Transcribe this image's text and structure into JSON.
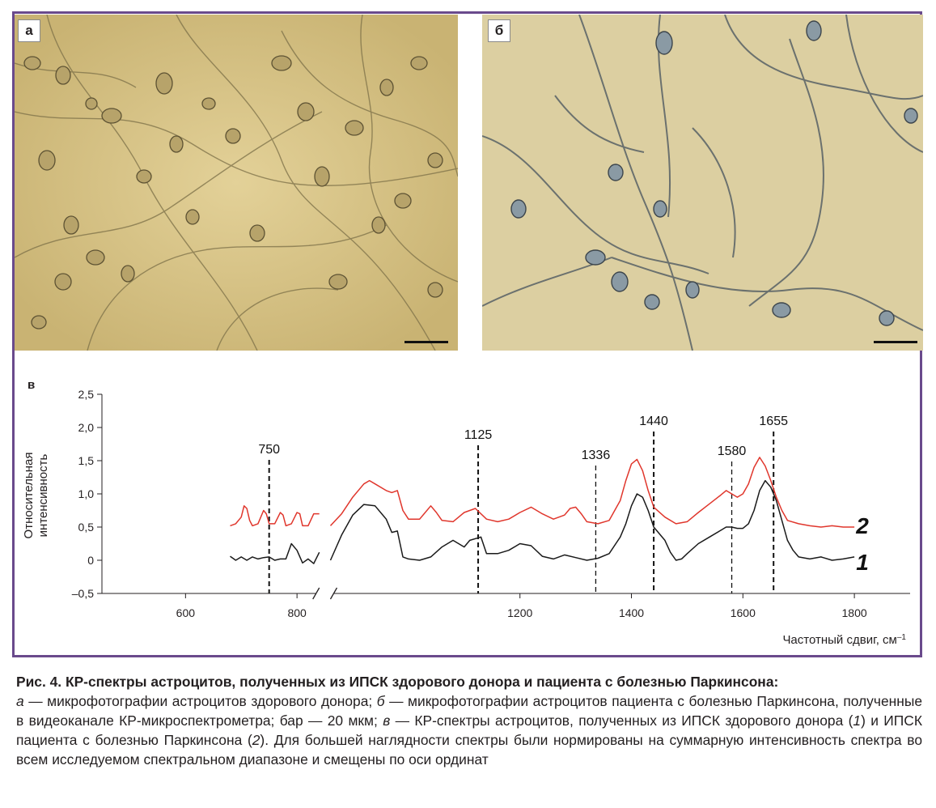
{
  "figure": {
    "panel_labels": {
      "a": "а",
      "b": "б",
      "v": "в"
    }
  },
  "chart_data": {
    "type": "line",
    "xlabel": "Частотный сдвиг, см",
    "xlabel_sup": "–1",
    "ylabel_line1": "Относительная",
    "ylabel_line2": "интенсивность",
    "xlim": [
      450,
      1900
    ],
    "ylim": [
      -0.5,
      2.5
    ],
    "yticks": [
      "–0,5",
      "0",
      "0,5",
      "1,0",
      "1,5",
      "2,0",
      "2,5"
    ],
    "yticks_values": [
      -0.5,
      0,
      0.5,
      1.0,
      1.5,
      2.0,
      2.5
    ],
    "xticks": [
      "600",
      "800",
      "1200",
      "1400",
      "1600",
      "1800"
    ],
    "xticks_values": [
      600,
      800,
      1200,
      1400,
      1600,
      1800
    ],
    "axis_break_between": [
      840,
      860
    ],
    "marker_lines": [
      {
        "x": 750,
        "label": "750"
      },
      {
        "x": 1125,
        "label": "1125"
      },
      {
        "x": 1336,
        "label": "1336"
      },
      {
        "x": 1440,
        "label": "1440"
      },
      {
        "x": 1580,
        "label": "1580"
      },
      {
        "x": 1655,
        "label": "1655"
      }
    ],
    "series": [
      {
        "name": "1",
        "color": "#1a1a1a",
        "segments": [
          [
            [
              680,
              0.06
            ],
            [
              690,
              0.0
            ],
            [
              700,
              0.05
            ],
            [
              710,
              0.0
            ],
            [
              720,
              0.05
            ],
            [
              730,
              0.02
            ],
            [
              740,
              0.04
            ],
            [
              750,
              0.05
            ],
            [
              760,
              0.0
            ],
            [
              770,
              0.02
            ],
            [
              780,
              0.02
            ],
            [
              790,
              0.25
            ],
            [
              800,
              0.15
            ],
            [
              810,
              -0.04
            ],
            [
              820,
              0.02
            ],
            [
              830,
              -0.05
            ],
            [
              840,
              0.12
            ]
          ],
          [
            [
              860,
              0.0
            ],
            [
              880,
              0.38
            ],
            [
              900,
              0.68
            ],
            [
              920,
              0.84
            ],
            [
              940,
              0.82
            ],
            [
              960,
              0.62
            ],
            [
              970,
              0.42
            ],
            [
              980,
              0.44
            ],
            [
              990,
              0.05
            ],
            [
              1000,
              0.02
            ],
            [
              1020,
              0.0
            ],
            [
              1040,
              0.05
            ],
            [
              1060,
              0.2
            ],
            [
              1080,
              0.3
            ],
            [
              1100,
              0.2
            ],
            [
              1110,
              0.3
            ],
            [
              1130,
              0.35
            ],
            [
              1140,
              0.1
            ],
            [
              1160,
              0.1
            ],
            [
              1180,
              0.15
            ],
            [
              1200,
              0.25
            ],
            [
              1220,
              0.22
            ],
            [
              1240,
              0.06
            ],
            [
              1260,
              0.02
            ],
            [
              1280,
              0.08
            ],
            [
              1300,
              0.04
            ],
            [
              1320,
              0.0
            ],
            [
              1340,
              0.03
            ],
            [
              1360,
              0.1
            ],
            [
              1380,
              0.35
            ],
            [
              1390,
              0.55
            ],
            [
              1400,
              0.82
            ],
            [
              1410,
              1.0
            ],
            [
              1420,
              0.95
            ],
            [
              1430,
              0.75
            ],
            [
              1440,
              0.5
            ],
            [
              1460,
              0.3
            ],
            [
              1470,
              0.12
            ],
            [
              1480,
              0.0
            ],
            [
              1490,
              0.02
            ],
            [
              1500,
              0.1
            ],
            [
              1520,
              0.25
            ],
            [
              1540,
              0.35
            ],
            [
              1560,
              0.45
            ],
            [
              1570,
              0.5
            ],
            [
              1580,
              0.5
            ],
            [
              1590,
              0.48
            ],
            [
              1600,
              0.48
            ],
            [
              1610,
              0.55
            ],
            [
              1620,
              0.75
            ],
            [
              1630,
              1.05
            ],
            [
              1640,
              1.2
            ],
            [
              1650,
              1.1
            ],
            [
              1660,
              0.9
            ],
            [
              1670,
              0.6
            ],
            [
              1680,
              0.3
            ],
            [
              1690,
              0.15
            ],
            [
              1700,
              0.05
            ],
            [
              1720,
              0.02
            ],
            [
              1740,
              0.05
            ],
            [
              1760,
              0.0
            ],
            [
              1780,
              0.02
            ],
            [
              1800,
              0.05
            ]
          ]
        ]
      },
      {
        "name": "2",
        "color": "#e0362c",
        "segments": [
          [
            [
              680,
              0.52
            ],
            [
              690,
              0.55
            ],
            [
              700,
              0.65
            ],
            [
              705,
              0.82
            ],
            [
              710,
              0.78
            ],
            [
              715,
              0.6
            ],
            [
              720,
              0.52
            ],
            [
              730,
              0.55
            ],
            [
              740,
              0.75
            ],
            [
              745,
              0.7
            ],
            [
              750,
              0.55
            ],
            [
              760,
              0.55
            ],
            [
              770,
              0.72
            ],
            [
              775,
              0.68
            ],
            [
              780,
              0.52
            ],
            [
              790,
              0.55
            ],
            [
              800,
              0.72
            ],
            [
              805,
              0.7
            ],
            [
              810,
              0.52
            ],
            [
              820,
              0.52
            ],
            [
              830,
              0.7
            ],
            [
              840,
              0.7
            ]
          ],
          [
            [
              860,
              0.52
            ],
            [
              880,
              0.7
            ],
            [
              900,
              0.95
            ],
            [
              920,
              1.15
            ],
            [
              930,
              1.2
            ],
            [
              940,
              1.15
            ],
            [
              960,
              1.05
            ],
            [
              970,
              1.02
            ],
            [
              980,
              1.05
            ],
            [
              990,
              0.75
            ],
            [
              1000,
              0.62
            ],
            [
              1020,
              0.62
            ],
            [
              1040,
              0.82
            ],
            [
              1050,
              0.72
            ],
            [
              1060,
              0.6
            ],
            [
              1080,
              0.58
            ],
            [
              1100,
              0.72
            ],
            [
              1120,
              0.78
            ],
            [
              1140,
              0.62
            ],
            [
              1160,
              0.58
            ],
            [
              1180,
              0.62
            ],
            [
              1200,
              0.72
            ],
            [
              1220,
              0.8
            ],
            [
              1240,
              0.7
            ],
            [
              1260,
              0.62
            ],
            [
              1280,
              0.68
            ],
            [
              1290,
              0.78
            ],
            [
              1300,
              0.8
            ],
            [
              1310,
              0.7
            ],
            [
              1320,
              0.58
            ],
            [
              1340,
              0.55
            ],
            [
              1360,
              0.6
            ],
            [
              1380,
              0.9
            ],
            [
              1390,
              1.2
            ],
            [
              1400,
              1.45
            ],
            [
              1410,
              1.52
            ],
            [
              1420,
              1.35
            ],
            [
              1430,
              1.05
            ],
            [
              1440,
              0.8
            ],
            [
              1460,
              0.65
            ],
            [
              1480,
              0.55
            ],
            [
              1500,
              0.58
            ],
            [
              1520,
              0.72
            ],
            [
              1540,
              0.85
            ],
            [
              1560,
              0.98
            ],
            [
              1570,
              1.05
            ],
            [
              1580,
              1.0
            ],
            [
              1590,
              0.95
            ],
            [
              1600,
              1.0
            ],
            [
              1610,
              1.15
            ],
            [
              1620,
              1.4
            ],
            [
              1630,
              1.55
            ],
            [
              1640,
              1.42
            ],
            [
              1650,
              1.2
            ],
            [
              1660,
              0.95
            ],
            [
              1670,
              0.75
            ],
            [
              1680,
              0.6
            ],
            [
              1700,
              0.55
            ],
            [
              1720,
              0.52
            ],
            [
              1740,
              0.5
            ],
            [
              1760,
              0.52
            ],
            [
              1780,
              0.5
            ],
            [
              1800,
              0.5
            ]
          ]
        ]
      }
    ],
    "series_labels": [
      {
        "text": "2",
        "at_y": 0.55
      },
      {
        "text": "1",
        "at_y": 0.0
      }
    ]
  },
  "caption": {
    "title": "Рис. 4. КР-спектры астроцитов, полученных из ИПСК здорового донора и пациента с болезнью Паркинсона:",
    "p1_a": "а",
    "p1_t1": " — микрофотографии астроцитов здорового донора; ",
    "p1_b": "б",
    "p1_t2": " — микрофотографии астроцитов пациента с болезнью Паркинсона, полученные в видеоканале КР-микроспектрометра; бар — 20 мкм; ",
    "p1_v": "в",
    "p1_t3": " — КР-спектры астроцитов, полученных из ИПСК здорового донора (",
    "p1_n1": "1",
    "p1_t4": ") и ИПСК пациента с болезнью Паркинсона (",
    "p1_n2": "2",
    "p1_t5": "). Для большей наглядности спектры были нормированы на суммарную интенсивность спектра во всем исследуемом спектральном диапазоне и смещены по оси ординат"
  }
}
